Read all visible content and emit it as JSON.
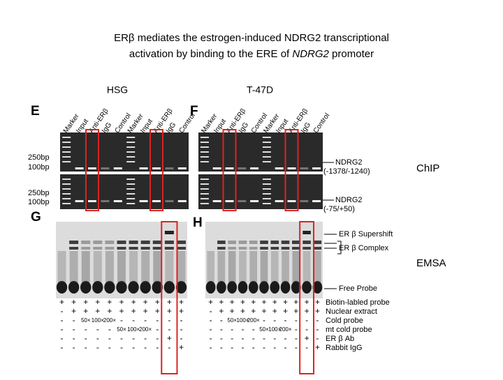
{
  "title": {
    "line1": "ERβ mediates the estrogen-induced NDRG2 transcriptional",
    "line2_start": "activation by binding to the ERE of ",
    "line2_italic": "NDRG2",
    "line2_end": " promoter"
  },
  "cell_lines": [
    "HSG",
    "T-47D"
  ],
  "panels": [
    "E",
    "F",
    "G",
    "H"
  ],
  "lanes": [
    "Marker",
    "Input",
    "Anti-ERβ",
    "IgG",
    "Control"
  ],
  "bp_markers": [
    "250bp",
    "100bp"
  ],
  "chip_targets": [
    {
      "name": "NDRG2",
      "range": "(-1378/-1240)"
    },
    {
      "name": "NDRG2",
      "range": "(-75/+50)"
    }
  ],
  "side_labels": [
    "ChIP",
    "EMSA"
  ],
  "emsa_bands": [
    "ER β Supershift",
    "ER β Complex",
    "Free Probe"
  ],
  "emsa_conditions": [
    "Biotin-labled probe",
    "Nuclear extract",
    "Cold probe",
    "mt cold probe",
    "ER β Ab",
    "Rabbit IgG"
  ],
  "emsa_signs": [
    [
      "+",
      "+",
      "+",
      "+",
      "+",
      "+",
      "+",
      "+",
      "+",
      "+",
      "+"
    ],
    [
      "-",
      "+",
      "+",
      "+",
      "+",
      "+",
      "+",
      "+",
      "+",
      "+",
      "+"
    ],
    [
      "-",
      "-",
      "50×",
      "100×",
      "200×",
      "-",
      "-",
      "-",
      "-",
      "-",
      "-"
    ],
    [
      "-",
      "-",
      "-",
      "-",
      "-",
      "50×",
      "100×",
      "200×",
      "-",
      "-",
      "-"
    ],
    [
      "-",
      "-",
      "-",
      "-",
      "-",
      "-",
      "-",
      "-",
      "-",
      "+",
      "-"
    ],
    [
      "-",
      "-",
      "-",
      "-",
      "-",
      "-",
      "-",
      "-",
      "-",
      "-",
      "+"
    ]
  ]
}
